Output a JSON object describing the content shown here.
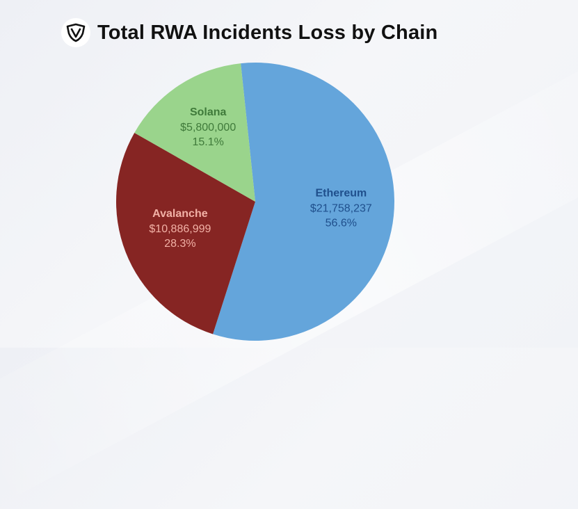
{
  "header": {
    "title": "Total RWA Incidents Loss by Chain",
    "logo_icon": "shield-logo-icon"
  },
  "chart_data": {
    "type": "pie",
    "title": "Total RWA Incidents Loss by Chain",
    "slices": [
      {
        "name": "Ethereum",
        "value": 21758237,
        "value_label": "$21,758,237",
        "percent_label": "56.6%",
        "color": "#64a5db",
        "text_color": "#1f4f8c"
      },
      {
        "name": "Avalanche",
        "value": 10886999,
        "value_label": "$10,886,999",
        "percent_label": "28.3%",
        "color": "#862523",
        "text_color": "#f2b1a6"
      },
      {
        "name": "Solana",
        "value": 5800000,
        "value_label": "$5,800,000",
        "percent_label": "15.1%",
        "color": "#9ad48c",
        "text_color": "#3f7a3a"
      }
    ]
  }
}
